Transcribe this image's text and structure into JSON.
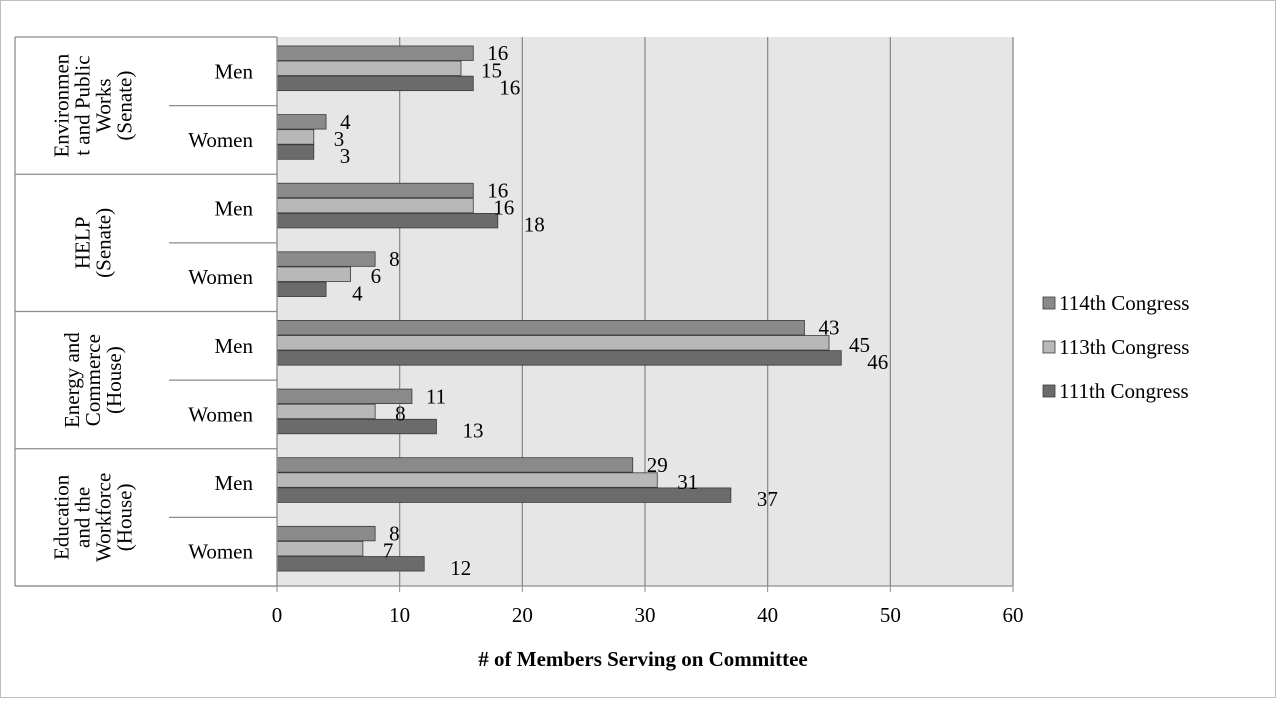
{
  "chart_data": {
    "type": "bar",
    "orientation": "horizontal",
    "title": "",
    "xlabel": "# of Members Serving on Committee",
    "ylabel": "",
    "xlim": [
      0,
      60
    ],
    "xticks": [
      0,
      10,
      20,
      30,
      40,
      50,
      60
    ],
    "grid": true,
    "legend_position": "right",
    "groups": [
      {
        "label": "Environment and Public Works (Senate)",
        "lines": [
          "Environmen",
          "t and Public",
          "Works",
          "(Senate)"
        ]
      },
      {
        "label": "HELP (Senate)",
        "lines": [
          "HELP",
          "(Senate)"
        ]
      },
      {
        "label": "Energy and Commerce (House)",
        "lines": [
          "Energy and",
          "Commerce",
          "(House)"
        ]
      },
      {
        "label": "Education and the Workforce (House)",
        "lines": [
          "Education",
          "and the",
          "Workforce",
          "(House)"
        ]
      }
    ],
    "categories": [
      {
        "group": 0,
        "label": "Men"
      },
      {
        "group": 0,
        "label": "Women"
      },
      {
        "group": 1,
        "label": "Men"
      },
      {
        "group": 1,
        "label": "Women"
      },
      {
        "group": 2,
        "label": "Men"
      },
      {
        "group": 2,
        "label": "Women"
      },
      {
        "group": 3,
        "label": "Men"
      },
      {
        "group": 3,
        "label": "Women"
      }
    ],
    "series": [
      {
        "name": "114th Congress",
        "color": "#8a8a8a",
        "values": [
          16,
          4,
          16,
          8,
          43,
          11,
          29,
          8
        ]
      },
      {
        "name": "113th Congress",
        "color": "#b8b8b8",
        "values": [
          15,
          3,
          16,
          6,
          45,
          8,
          31,
          7
        ]
      },
      {
        "name": "111th Congress",
        "color": "#6b6b6b",
        "values": [
          16,
          3,
          18,
          4,
          46,
          13,
          37,
          12
        ]
      }
    ],
    "plot_background": "#e6e6e6",
    "gridline_color": "#8c8c8c"
  }
}
